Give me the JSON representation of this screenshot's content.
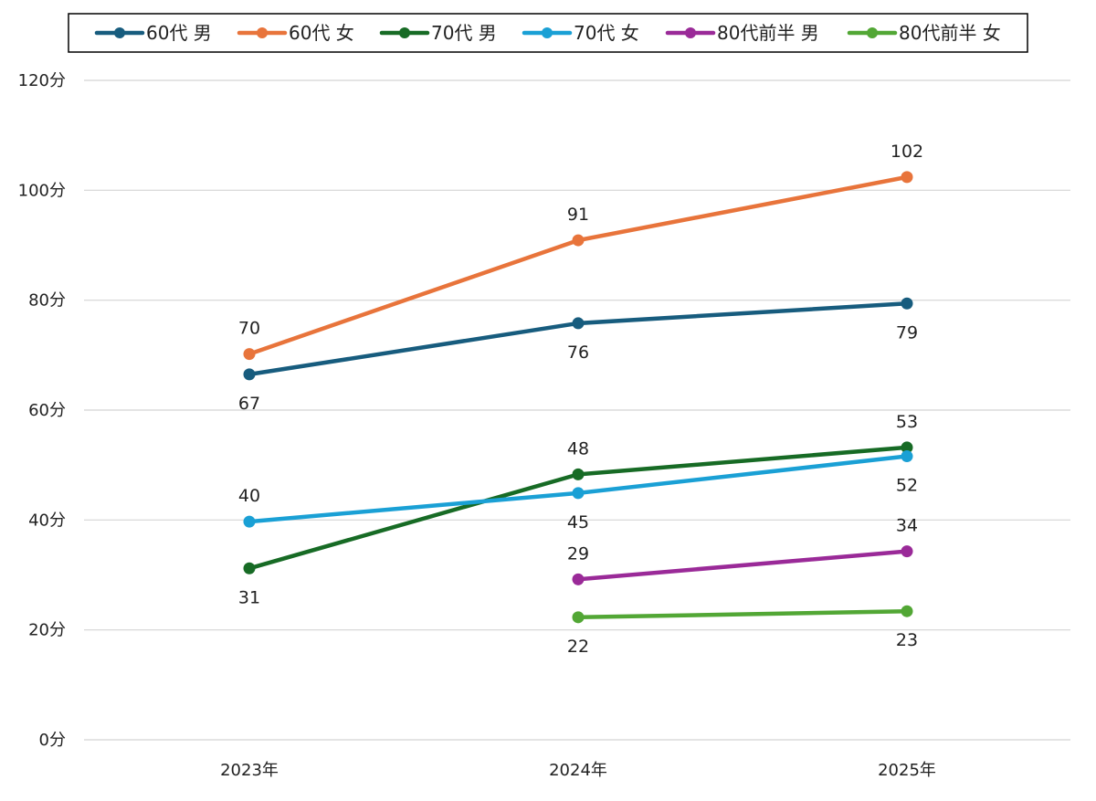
{
  "chart_data": {
    "type": "line",
    "categories": [
      "2023年",
      "2024年",
      "2025年"
    ],
    "y_ticks": [
      "0分",
      "20分",
      "40分",
      "60分",
      "80分",
      "100分",
      "120分"
    ],
    "ylim": [
      0,
      120
    ],
    "grid": true,
    "legend_position": "top",
    "series": [
      {
        "name": "60代 男",
        "color": "#175C7E",
        "values": [
          66.5,
          75.8,
          79.4
        ],
        "labels": [
          "67",
          "76",
          "79"
        ],
        "label_pos": [
          "below",
          "below",
          "below"
        ]
      },
      {
        "name": "60代 女",
        "color": "#E8743B",
        "values": [
          70.2,
          90.9,
          102.4
        ],
        "labels": [
          "70",
          "91",
          "102"
        ],
        "label_pos": [
          "above",
          "above",
          "above"
        ]
      },
      {
        "name": "70代 男",
        "color": "#176B25",
        "values": [
          31.2,
          48.3,
          53.2
        ],
        "labels": [
          "31",
          "48",
          "53"
        ],
        "label_pos": [
          "below",
          "above",
          "above"
        ]
      },
      {
        "name": "70代 女",
        "color": "#1AA0D5",
        "values": [
          39.7,
          44.9,
          51.6
        ],
        "labels": [
          "40",
          "45",
          "52"
        ],
        "label_pos": [
          "above",
          "below",
          "below"
        ]
      },
      {
        "name": "80代前半 男",
        "color": "#9A2A98",
        "values": [
          null,
          29.2,
          34.3
        ],
        "labels": [
          "",
          "29",
          "34"
        ],
        "label_pos": [
          "",
          "above",
          "above"
        ]
      },
      {
        "name": "80代前半 女",
        "color": "#52A735",
        "values": [
          null,
          22.3,
          23.4
        ],
        "labels": [
          "",
          "22",
          "23"
        ],
        "label_pos": [
          "",
          "below",
          "below"
        ]
      }
    ]
  }
}
